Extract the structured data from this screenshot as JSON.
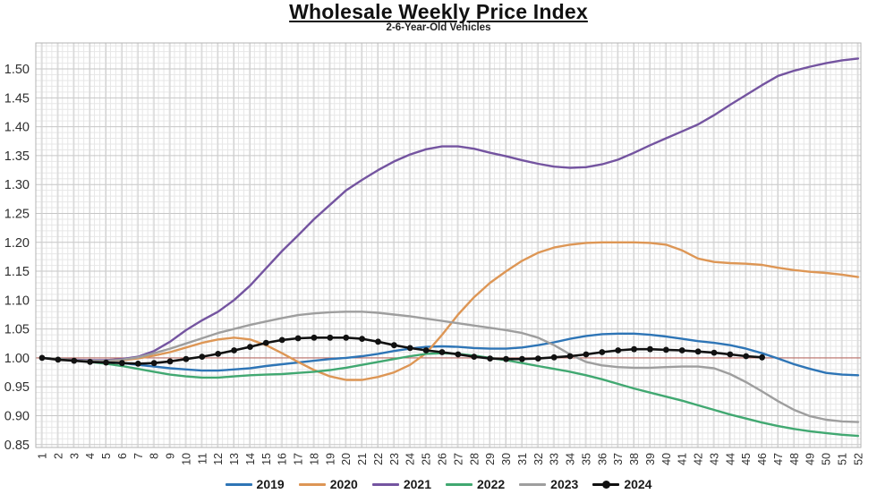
{
  "chart_data": {
    "type": "line",
    "title": "Wholesale Weekly Price Index",
    "subtitle": "2-6-Year-Old Vehicles",
    "xlabel": "",
    "ylabel": "",
    "legend_position": "bottom",
    "grid": {
      "minor_step": 0.01,
      "major_step": 0.05,
      "vertical_minor_per_week": 3
    },
    "ylim": [
      0.845,
      1.545
    ],
    "y_ticks": [
      0.85,
      0.9,
      0.95,
      1.0,
      1.05,
      1.1,
      1.15,
      1.2,
      1.25,
      1.3,
      1.35,
      1.4,
      1.45,
      1.5
    ],
    "reference_line": {
      "y": 1.0,
      "color": "#bd7068"
    },
    "x": [
      1,
      2,
      3,
      4,
      5,
      6,
      7,
      8,
      9,
      10,
      11,
      12,
      13,
      14,
      15,
      16,
      17,
      18,
      19,
      20,
      21,
      22,
      23,
      24,
      25,
      26,
      27,
      28,
      29,
      30,
      31,
      32,
      33,
      34,
      35,
      36,
      37,
      38,
      39,
      40,
      41,
      42,
      43,
      44,
      45,
      46,
      47,
      48,
      49,
      50,
      51,
      52
    ],
    "series": [
      {
        "name": "2019",
        "color": "#2e75b6",
        "marker": "none",
        "values": [
          1.0,
          0.998,
          0.996,
          0.995,
          0.993,
          0.991,
          0.988,
          0.985,
          0.982,
          0.98,
          0.978,
          0.978,
          0.98,
          0.982,
          0.986,
          0.989,
          0.992,
          0.995,
          0.998,
          1.0,
          1.003,
          1.007,
          1.012,
          1.016,
          1.019,
          1.02,
          1.019,
          1.017,
          1.016,
          1.016,
          1.018,
          1.022,
          1.027,
          1.033,
          1.038,
          1.041,
          1.042,
          1.042,
          1.04,
          1.037,
          1.033,
          1.029,
          1.026,
          1.022,
          1.016,
          1.008,
          0.999,
          0.989,
          0.981,
          0.974,
          0.971,
          0.97
        ]
      },
      {
        "name": "2020",
        "color": "#dd9655",
        "marker": "none",
        "values": [
          1.0,
          0.998,
          0.996,
          0.995,
          0.995,
          0.996,
          0.999,
          1.004,
          1.01,
          1.018,
          1.026,
          1.032,
          1.035,
          1.032,
          1.022,
          1.008,
          0.993,
          0.979,
          0.968,
          0.962,
          0.962,
          0.967,
          0.975,
          0.988,
          1.008,
          1.04,
          1.075,
          1.105,
          1.13,
          1.15,
          1.168,
          1.182,
          1.191,
          1.196,
          1.199,
          1.2,
          1.2,
          1.2,
          1.199,
          1.196,
          1.186,
          1.172,
          1.166,
          1.164,
          1.163,
          1.161,
          1.156,
          1.152,
          1.149,
          1.147,
          1.144,
          1.14
        ]
      },
      {
        "name": "2021",
        "color": "#7454a0",
        "marker": "none",
        "values": [
          1.0,
          0.998,
          0.997,
          0.996,
          0.996,
          0.998,
          1.002,
          1.012,
          1.028,
          1.048,
          1.065,
          1.08,
          1.1,
          1.125,
          1.155,
          1.185,
          1.212,
          1.24,
          1.265,
          1.29,
          1.308,
          1.325,
          1.34,
          1.352,
          1.361,
          1.366,
          1.366,
          1.362,
          1.355,
          1.349,
          1.342,
          1.336,
          1.331,
          1.329,
          1.33,
          1.335,
          1.343,
          1.355,
          1.368,
          1.38,
          1.392,
          1.404,
          1.42,
          1.438,
          1.455,
          1.472,
          1.488,
          1.497,
          1.504,
          1.51,
          1.515,
          1.518
        ]
      },
      {
        "name": "2022",
        "color": "#41a871",
        "marker": "none",
        "values": [
          1.0,
          0.998,
          0.996,
          0.993,
          0.99,
          0.986,
          0.981,
          0.976,
          0.971,
          0.968,
          0.966,
          0.966,
          0.968,
          0.97,
          0.971,
          0.972,
          0.974,
          0.976,
          0.979,
          0.983,
          0.988,
          0.993,
          0.998,
          1.003,
          1.007,
          1.008,
          1.007,
          1.004,
          1.0,
          0.996,
          0.991,
          0.986,
          0.981,
          0.976,
          0.97,
          0.963,
          0.955,
          0.947,
          0.94,
          0.933,
          0.926,
          0.918,
          0.91,
          0.902,
          0.895,
          0.888,
          0.882,
          0.877,
          0.873,
          0.87,
          0.867,
          0.865
        ]
      },
      {
        "name": "2023",
        "color": "#9e9e9e",
        "marker": "none",
        "values": [
          1.0,
          0.998,
          0.996,
          0.995,
          0.995,
          0.997,
          1.001,
          1.008,
          1.016,
          1.025,
          1.034,
          1.043,
          1.05,
          1.057,
          1.063,
          1.069,
          1.074,
          1.077,
          1.079,
          1.08,
          1.08,
          1.078,
          1.075,
          1.072,
          1.068,
          1.064,
          1.06,
          1.056,
          1.052,
          1.048,
          1.043,
          1.035,
          1.022,
          1.006,
          0.993,
          0.987,
          0.984,
          0.983,
          0.983,
          0.984,
          0.985,
          0.985,
          0.982,
          0.972,
          0.958,
          0.942,
          0.925,
          0.91,
          0.899,
          0.893,
          0.89,
          0.889
        ]
      },
      {
        "name": "2024",
        "color": "#111111",
        "marker": "circle",
        "values": [
          1.0,
          0.997,
          0.995,
          0.993,
          0.992,
          0.991,
          0.99,
          0.991,
          0.994,
          0.998,
          1.002,
          1.007,
          1.013,
          1.019,
          1.026,
          1.031,
          1.034,
          1.035,
          1.035,
          1.035,
          1.033,
          1.028,
          1.022,
          1.017,
          1.013,
          1.01,
          1.006,
          1.002,
          0.999,
          0.998,
          0.998,
          0.999,
          1.001,
          1.003,
          1.006,
          1.01,
          1.013,
          1.015,
          1.015,
          1.014,
          1.013,
          1.011,
          1.009,
          1.006,
          1.003,
          1.001
        ]
      }
    ]
  }
}
